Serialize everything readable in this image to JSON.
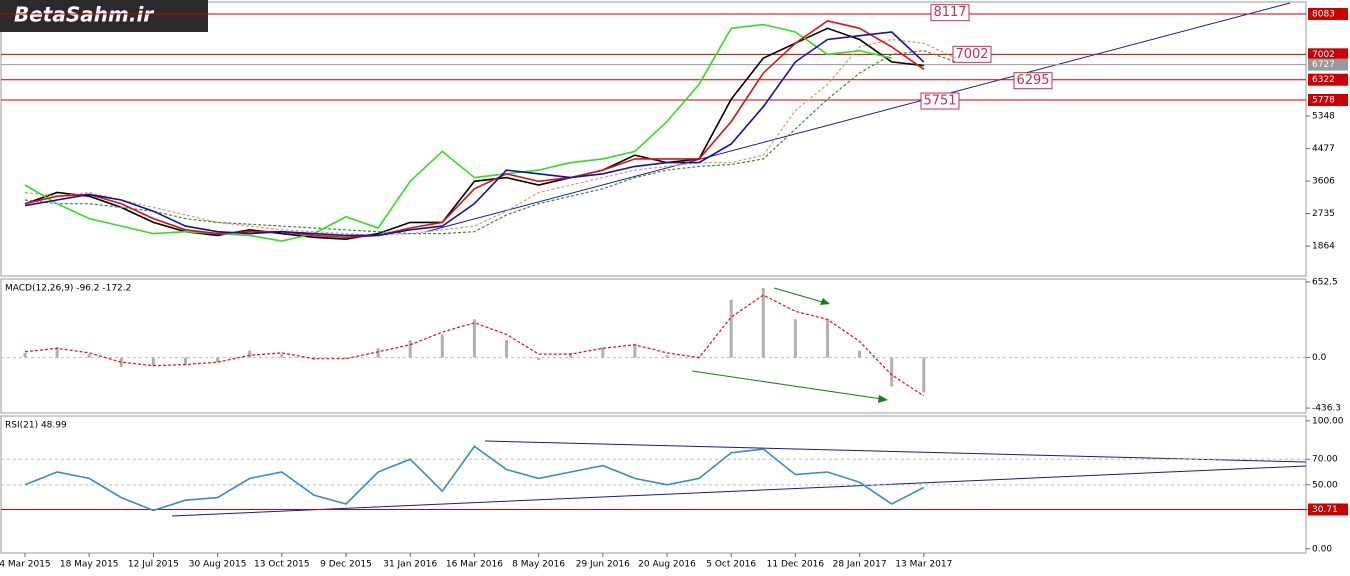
{
  "logo": "BetaSahm.ir",
  "chart_data": [
    {
      "type": "line",
      "ylim": [
        1090,
        8350
      ],
      "yticks": [
        5348,
        4477,
        3606,
        2735,
        1864
      ],
      "levels": [
        8083,
        7002,
        6322,
        5778
      ],
      "level_color": "#cc0000",
      "current": 6727,
      "current_color": "#999999",
      "annotations": [
        8117,
        7002,
        6295,
        5751
      ],
      "series": [
        {
          "color": "#000000",
          "values": [
            3000,
            3300,
            3200,
            2900,
            2500,
            2250,
            2150,
            2300,
            2200,
            2100,
            2050,
            2200,
            2500,
            2500,
            3600,
            3700,
            3500,
            3700,
            3900,
            4300,
            4100,
            4200,
            5800,
            6900,
            7300,
            7700,
            7400,
            6800,
            6700,
            null,
            null,
            null,
            null,
            null,
            null,
            null,
            null,
            null,
            null,
            null
          ]
        },
        {
          "color": "#d4a070",
          "dashed": true,
          "values": [
            3300,
            3200,
            3300,
            3100,
            2900,
            2700,
            2500,
            2400,
            2300,
            2250,
            2200,
            2150,
            2200,
            2300,
            2400,
            2800,
            3300,
            3500,
            3700,
            3900,
            4000,
            4100,
            4100,
            4300,
            5500,
            6200,
            7200,
            7400,
            7300,
            6900,
            null,
            null,
            null,
            null,
            null,
            null,
            null,
            null,
            null,
            null
          ]
        },
        {
          "color": "#3a8a3a",
          "dashed": true,
          "values": [
            3100,
            3000,
            3000,
            2900,
            2800,
            2600,
            2500,
            2450,
            2400,
            2350,
            2300,
            2250,
            2200,
            2200,
            2250,
            2700,
            3000,
            3200,
            3400,
            3700,
            3900,
            4000,
            4050,
            4200,
            5000,
            5800,
            6500,
            7000,
            7100,
            6800,
            null,
            null,
            null,
            null,
            null,
            null,
            null,
            null,
            null,
            null
          ]
        },
        {
          "color": "#33dd22",
          "values": [
            3500,
            3000,
            2600,
            2400,
            2200,
            2250,
            2200,
            2150,
            2000,
            2200,
            2650,
            2350,
            3600,
            4400,
            3700,
            3800,
            3900,
            4100,
            4200,
            4400,
            5200,
            6200,
            7700,
            7800,
            7600,
            7000,
            7100,
            6900,
            null,
            null,
            null,
            null,
            null,
            null,
            null,
            null,
            null,
            null,
            null,
            null
          ]
        },
        {
          "color": "#dd1111",
          "values": [
            3000,
            3200,
            3250,
            3000,
            2600,
            2300,
            2200,
            2250,
            2250,
            2150,
            2100,
            2150,
            2350,
            2500,
            3400,
            3800,
            3600,
            3700,
            3900,
            4200,
            4200,
            4200,
            5200,
            6500,
            7300,
            7900,
            7700,
            7200,
            6600,
            null,
            null,
            null,
            null,
            null,
            null,
            null,
            null,
            null,
            null,
            null
          ]
        },
        {
          "color": "#1111aa",
          "values": [
            2950,
            3100,
            3250,
            3100,
            2800,
            2400,
            2250,
            2200,
            2250,
            2200,
            2150,
            2150,
            2300,
            2400,
            3000,
            3900,
            3800,
            3700,
            3800,
            4000,
            4100,
            4100,
            4600,
            5600,
            6800,
            7400,
            7500,
            7600,
            6800,
            null,
            null,
            null,
            null,
            null,
            null,
            null,
            null,
            null,
            null,
            null
          ]
        }
      ]
    },
    {
      "type": "bar",
      "title": "MACD(12,26,9) -96.2 -172.2",
      "ylim": [
        -470,
        670
      ],
      "yticks": [
        652.5,
        {
          "value": 0,
          "label": "0.0"
        },
        -436.3
      ],
      "series": [
        {
          "color": "#b0b0b0",
          "style": "bar",
          "values": [
            40,
            90,
            30,
            -80,
            -70,
            -60,
            -40,
            60,
            30,
            -20,
            -10,
            80,
            150,
            200,
            330,
            150,
            -20,
            40,
            90,
            120,
            20,
            10,
            500,
            600,
            330,
            330,
            60,
            -250,
            -300,
            null,
            null,
            null,
            null,
            null,
            null,
            null,
            null,
            null,
            null,
            null
          ]
        },
        {
          "color": "#dd1111",
          "dashed": true,
          "values": [
            50,
            80,
            40,
            -40,
            -70,
            -60,
            -40,
            20,
            40,
            -10,
            -10,
            50,
            110,
            220,
            300,
            200,
            30,
            30,
            80,
            110,
            40,
            0,
            350,
            540,
            400,
            330,
            140,
            -150,
            -330,
            null,
            null,
            null,
            null,
            null,
            null,
            null,
            null,
            null,
            null,
            null
          ]
        }
      ]
    },
    {
      "type": "line",
      "title": "RSI(21) 48.99",
      "ylim": [
        -2.5,
        103
      ],
      "yticks": [
        {
          "value": 100,
          "label": "100.00"
        },
        {
          "value": 70,
          "label": "70.00"
        },
        {
          "value": 50,
          "label": "50.00"
        },
        {
          "value": 30.71,
          "label": "30.71"
        },
        {
          "value": 0,
          "label": "0.00"
        }
      ],
      "grid": true,
      "levels": [
        30.71
      ],
      "level_color": "#cc0000",
      "categories": [
        "4 Mar 2015",
        null,
        "18 May 2015",
        null,
        "12 Jul 2015",
        null,
        "30 Aug 2015",
        null,
        "13 Oct 2015",
        null,
        "9 Dec 2015",
        null,
        "31 Jan 2016",
        null,
        "16 Mar 2016",
        null,
        "8 May 2016",
        null,
        "29 Jun 2016",
        null,
        "20 Aug 2016",
        null,
        "5 Oct 2016",
        null,
        "11 Dec 2016",
        null,
        "28 Jan 2017",
        null,
        "13 Mar 2017",
        null,
        null,
        null,
        null,
        null,
        null,
        null,
        null,
        null,
        null,
        null
      ],
      "series": [
        {
          "color": "#3a8ac8",
          "values": [
            50,
            60,
            55,
            40,
            30,
            38,
            40,
            55,
            60,
            42,
            35,
            60,
            70,
            45,
            80,
            62,
            55,
            60,
            65,
            55,
            50,
            55,
            75,
            78,
            58,
            60,
            52,
            35,
            48,
            null,
            null,
            null,
            null,
            null,
            null,
            null,
            null,
            null,
            null,
            null
          ]
        }
      ]
    }
  ]
}
